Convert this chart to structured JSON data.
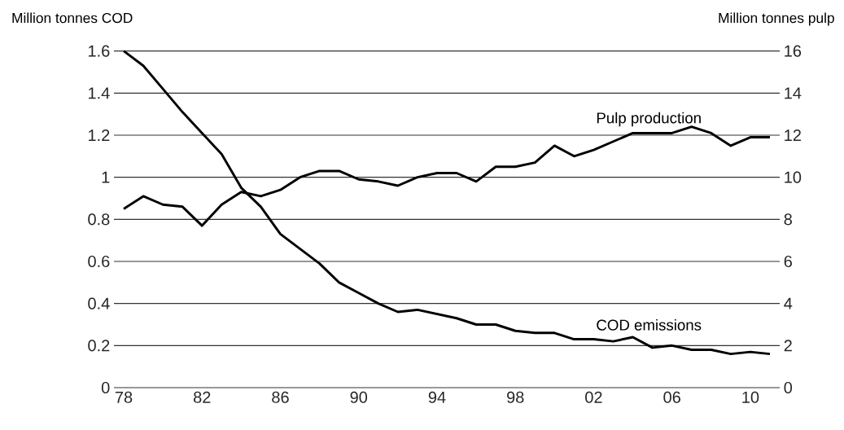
{
  "chart_data": {
    "type": "line",
    "ylabel": "Million tonnes COD",
    "y2label": "Million tonnes pulp",
    "categories": [
      "78",
      null,
      null,
      null,
      "82",
      null,
      null,
      null,
      "86",
      null,
      null,
      null,
      "90",
      null,
      null,
      null,
      "94",
      null,
      null,
      null,
      "98",
      null,
      null,
      null,
      "02",
      null,
      null,
      null,
      "06",
      null,
      null,
      null,
      "10",
      null
    ],
    "ylim": [
      0,
      1.6
    ],
    "yticks": [
      0,
      0.2,
      0.4,
      0.6,
      0.8,
      1,
      1.2,
      1.4,
      1.6
    ],
    "y2lim": [
      0,
      16
    ],
    "y2ticks": [
      0,
      2,
      4,
      6,
      8,
      10,
      12,
      14,
      16
    ],
    "grid": "y",
    "series": [
      {
        "name": "COD emissions",
        "color": "#000000",
        "values": [
          1.6,
          1.53,
          1.42,
          1.31,
          1.21,
          1.11,
          0.95,
          0.86,
          0.73,
          0.66,
          0.59,
          0.5,
          0.45,
          0.4,
          0.36,
          0.37,
          0.35,
          0.33,
          0.3,
          0.3,
          0.27,
          0.26,
          0.26,
          0.23,
          0.23,
          0.22,
          0.24,
          0.19,
          0.2,
          0.18,
          0.18,
          0.16,
          0.17,
          0.16
        ]
      },
      {
        "name": "Pulp production",
        "color": "#000000",
        "axis": "y2",
        "values": [
          8.5,
          9.1,
          8.7,
          8.6,
          7.7,
          8.7,
          9.3,
          9.1,
          9.4,
          10.0,
          10.3,
          10.3,
          9.9,
          9.8,
          9.6,
          10.0,
          10.2,
          10.2,
          9.8,
          10.5,
          10.5,
          10.7,
          11.5,
          11.0,
          11.3,
          11.7,
          12.1,
          12.1,
          12.1,
          12.4,
          12.1,
          11.5,
          11.9,
          11.9
        ]
      }
    ]
  }
}
